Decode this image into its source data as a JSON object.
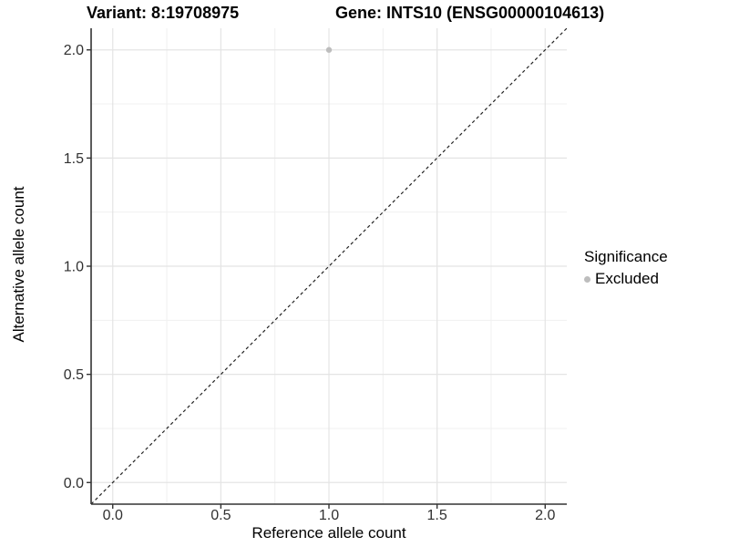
{
  "chart_data": {
    "type": "scatter",
    "titles": {
      "left": "Variant: 8:19708975",
      "right": "Gene: INTS10 (ENSG00000104613)"
    },
    "xlabel": "Reference allele count",
    "ylabel": "Alternative allele count",
    "xlim": [
      -0.1,
      2.1
    ],
    "ylim": [
      -0.1,
      2.1
    ],
    "x_ticks": [
      0,
      0.5,
      1,
      1.5,
      2
    ],
    "y_ticks": [
      0,
      0.5,
      1,
      1.5,
      2
    ],
    "x_tick_labels": [
      "0.0",
      "0.5",
      "1.0",
      "1.5",
      "2.0"
    ],
    "y_tick_labels": [
      "0.0",
      "0.5",
      "1.0",
      "1.5",
      "2.0"
    ],
    "x_minor_ticks": [
      0.25,
      0.75,
      1.25,
      1.75
    ],
    "y_minor_ticks": [
      0.25,
      0.75,
      1.25,
      1.75
    ],
    "grid": true,
    "legend_position": "right",
    "series": [
      {
        "name": "Excluded",
        "color": "#bdbdbd",
        "marker": "circle",
        "points": [
          {
            "x": 1.0,
            "y": 2.0
          }
        ]
      }
    ],
    "reference_line": {
      "kind": "identity",
      "slope": 1,
      "intercept": 0,
      "style": "dashed",
      "color": "#222222"
    },
    "legend": {
      "title": "Significance",
      "items": [
        {
          "label": "Excluded",
          "color": "#bdbdbd",
          "marker": "circle"
        }
      ]
    },
    "colors": {
      "background": "#ffffff",
      "grid_major": "#e4e4e4",
      "grid_minor": "#f0f0f0",
      "axis_line": "#333333",
      "tick_mark": "#333333",
      "tick_text": "#303030",
      "title_text": "#000000"
    }
  }
}
